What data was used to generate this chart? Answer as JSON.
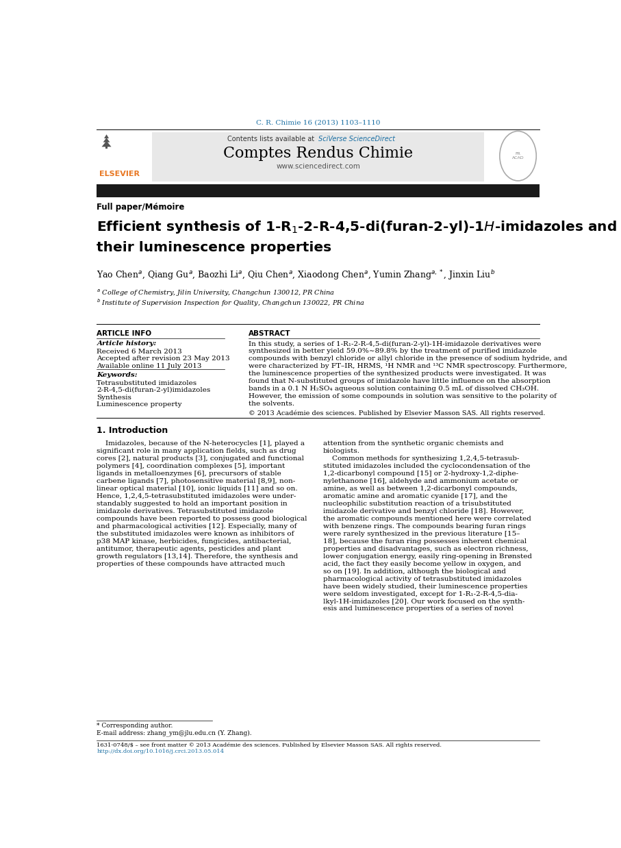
{
  "page_width": 9.07,
  "page_height": 12.38,
  "bg_color": "#ffffff",
  "journal_ref": "C. R. Chimie 16 (2013) 1103–1110",
  "journal_ref_color": "#1a6fa3",
  "sciverse_color": "#1a6fa3",
  "journal_name": "Comptes Rendus Chimie",
  "website": "www.sciencedirect.com",
  "header_bg": "#e8e8e8",
  "black_bar_color": "#1a1a1a",
  "section_label": "Full paper/Mémoire",
  "paper_title_line1": "Efficient synthesis of 1-R$_1$-2-R-4,5-di(furan-2-yl)-1$\\mathit{H}$-imidazoles and",
  "paper_title_line2": "their luminescence properties",
  "article_info_header": "ARTICLE INFO",
  "abstract_header": "ABSTRACT",
  "article_history_label": "Article history:",
  "received": "Received 6 March 2013",
  "accepted": "Accepted after revision 23 May 2013",
  "available": "Available online 11 July 2013",
  "keywords_label": "Keywords:",
  "keyword1": "Tetrasubstituted imidazoles",
  "keyword2": "2-R-4,5-di(furan-2-yl)imidazoles",
  "keyword3": "Synthesis",
  "keyword4": "Luminescence property",
  "copyright_text": "© 2013 Académie des sciences. Published by Elsevier Masson SAS. All rights reserved.",
  "intro_header": "1. Introduction",
  "footer_text1": "* Corresponding author.",
  "footer_text2": "E-mail address: zhang_ym@jlu.edu.cn (Y. Zhang).",
  "footer_bottom1": "1631-0748/$ – see front matter © 2013 Académie des sciences. Published by Elsevier Masson SAS. All rights reserved.",
  "footer_bottom2": "http://dx.doi.org/10.1016/j.crci.2013.05.014",
  "elsevier_color": "#e87722",
  "blue_color": "#1a6fa3",
  "abstract_lines": [
    "In this study, a series of 1-R₁-2-R-4,5-di(furan-2-yl)-1H-imidazole derivatives were",
    "synthesized in better yield 59.0%∼89.8% by the treatment of purified imidazole",
    "compounds with benzyl chloride or allyl chloride in the presence of sodium hydride, and",
    "were characterized by FT–IR, HRMS, ¹H NMR and ¹³C NMR spectroscopy. Furthermore,",
    "the luminescence properties of the synthesized products were investigated. It was",
    "found that N-substituted groups of imidazole have little influence on the absorption",
    "bands in a 0.1 N H₂SO₄ aqueous solution containing 0.5 mL of dissolved CH₃OH.",
    "However, the emission of some compounds in solution was sensitive to the polarity of",
    "the solvents."
  ],
  "col1_lines": [
    "    Imidazoles, because of the N-heterocycles [1], played a",
    "significant role in many application fields, such as drug",
    "cores [2], natural products [3], conjugated and functional",
    "polymers [4], coordination complexes [5], important",
    "ligands in metalloenzymes [6], precursors of stable",
    "carbene ligands [7], photosensitive material [8,9], non-",
    "linear optical material [10], ionic liquids [11] and so on.",
    "Hence, 1,2,4,5-tetrasubstituted imidazoles were under-",
    "standably suggested to hold an important position in",
    "imidazole derivatives. Tetrasubstituted imidazole",
    "compounds have been reported to possess good biological",
    "and pharmacological activities [12]. Especially, many of",
    "the substituted imidazoles were known as inhibitors of",
    "p38 MAP kinase, herbicides, fungicides, antibacterial,",
    "antitumor, therapeutic agents, pesticides and plant",
    "growth regulators [13,14]. Therefore, the synthesis and",
    "properties of these compounds have attracted much"
  ],
  "col2_lines": [
    "attention from the synthetic organic chemists and",
    "biologists.",
    "    Common methods for synthesizing 1,2,4,5-tetrasub-",
    "stituted imidazoles included the cyclocondensation of the",
    "1,2-dicarbonyl compound [15] or 2-hydroxy-1,2-diphe-",
    "nylethanone [16], aldehyde and ammonium acetate or",
    "amine, as well as between 1,2-dicarbonyl compounds,",
    "aromatic amine and aromatic cyanide [17], and the",
    "nucleophilic substitution reaction of a trisubstituted",
    "imidazole derivative and benzyl chloride [18]. However,",
    "the aromatic compounds mentioned here were correlated",
    "with benzene rings. The compounds bearing furan rings",
    "were rarely synthesized in the previous literature [15–",
    "18], because the furan ring possesses inherent chemical",
    "properties and disadvantages, such as electron richness,",
    "lower conjugation energy, easily ring-opening in Brønsted",
    "acid, the fact they easily become yellow in oxygen, and",
    "so on [19]. In addition, although the biological and",
    "pharmacological activity of tetrasubstituted imidazoles",
    "have been widely studied, their luminescence properties",
    "were seldom investigated, except for 1-R₁-2-R-4,5-dia-",
    "lkyl-1H-imidazoles [20]. Our work focused on the synth-",
    "esis and luminescence properties of a series of novel"
  ]
}
